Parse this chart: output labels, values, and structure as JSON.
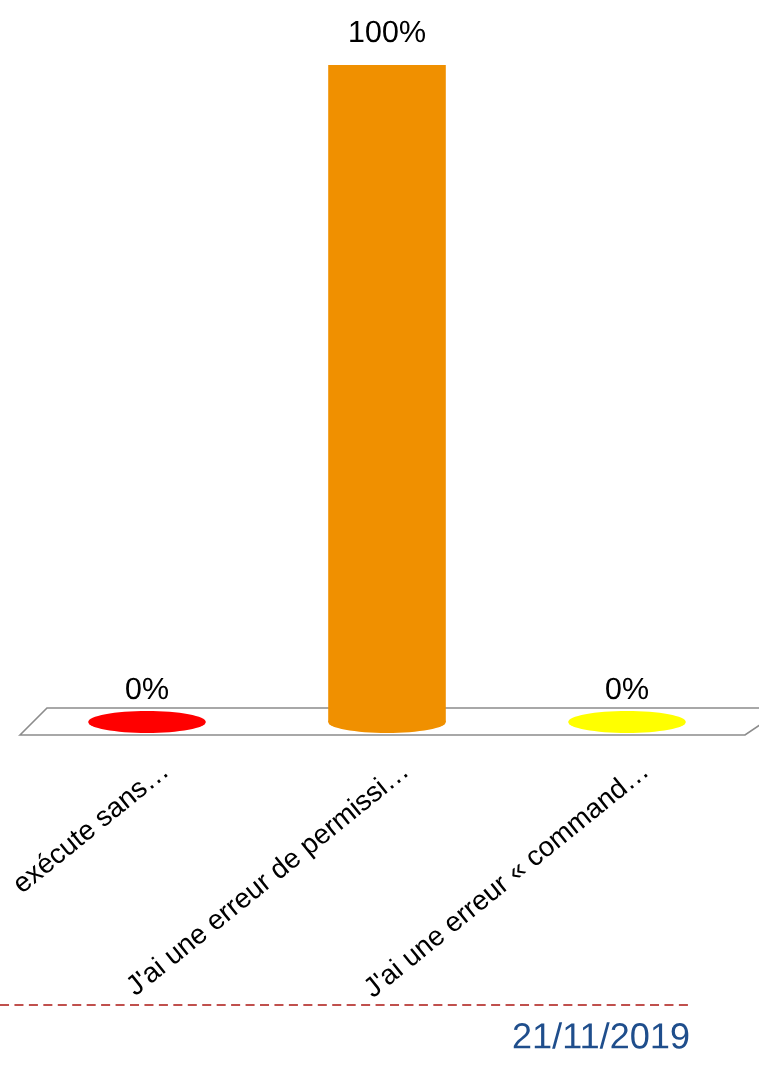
{
  "chart_data": {
    "type": "bar",
    "categories": [
      "exécute sans…",
      "J'ai une erreur de permissi…",
      "J'ai une erreur « command…"
    ],
    "values": [
      0,
      100,
      0
    ],
    "colors": [
      "#ff0000",
      "#f09000",
      "#ffff00"
    ],
    "value_labels": [
      "0%",
      "100%",
      "0%"
    ],
    "tick_labels": "x",
    "annotations": [
      "21/11/2019"
    ]
  }
}
